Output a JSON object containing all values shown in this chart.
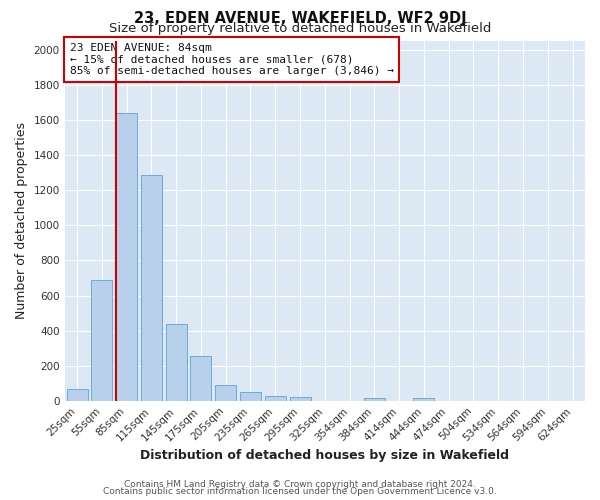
{
  "title": "23, EDEN AVENUE, WAKEFIELD, WF2 9DJ",
  "subtitle": "Size of property relative to detached houses in Wakefield",
  "xlabel": "Distribution of detached houses by size in Wakefield",
  "ylabel": "Number of detached properties",
  "bar_labels": [
    "25sqm",
    "55sqm",
    "85sqm",
    "115sqm",
    "145sqm",
    "175sqm",
    "205sqm",
    "235sqm",
    "265sqm",
    "295sqm",
    "325sqm",
    "354sqm",
    "384sqm",
    "414sqm",
    "444sqm",
    "474sqm",
    "504sqm",
    "534sqm",
    "564sqm",
    "594sqm",
    "624sqm"
  ],
  "bar_values": [
    65,
    690,
    1640,
    1285,
    435,
    255,
    90,
    52,
    28,
    22,
    0,
    0,
    15,
    0,
    15,
    0,
    0,
    0,
    0,
    0,
    0
  ],
  "bar_color": "#b8d0eb",
  "bar_edge_color": "#6aaed6",
  "ylim": [
    0,
    2050
  ],
  "yticks": [
    0,
    200,
    400,
    600,
    800,
    1000,
    1200,
    1400,
    1600,
    1800,
    2000
  ],
  "property_line_color": "#cc0000",
  "annotation_title": "23 EDEN AVENUE: 84sqm",
  "annotation_line1": "← 15% of detached houses are smaller (678)",
  "annotation_line2": "85% of semi-detached houses are larger (3,846) →",
  "annotation_box_color": "#cc0000",
  "footer_line1": "Contains HM Land Registry data © Crown copyright and database right 2024.",
  "footer_line2": "Contains public sector information licensed under the Open Government Licence v3.0.",
  "fig_bg_color": "#ffffff",
  "plot_bg_color": "#dce9f5",
  "grid_color": "#ffffff",
  "title_fontsize": 10.5,
  "subtitle_fontsize": 9.5,
  "axis_label_fontsize": 9,
  "tick_fontsize": 7.5,
  "footer_fontsize": 6.5,
  "annotation_fontsize": 8.0
}
